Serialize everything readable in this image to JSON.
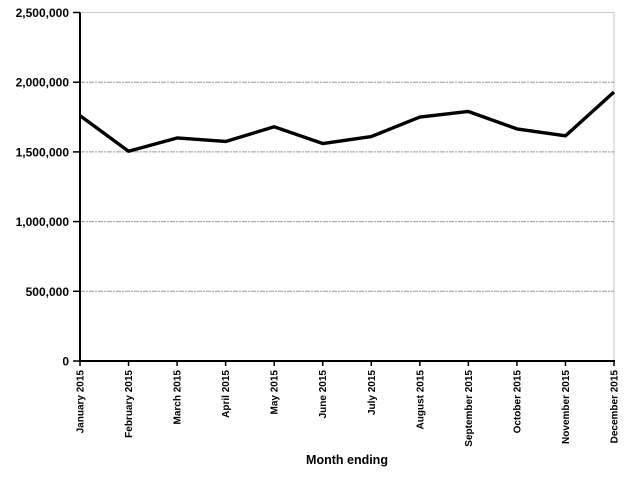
{
  "chart_data": {
    "type": "line",
    "title": "",
    "xlabel": "Month ending",
    "ylabel": "",
    "categories": [
      "January 2015",
      "February 2015",
      "March 2015",
      "April 2015",
      "May 2015",
      "June 2015",
      "July 2015",
      "August 2015",
      "September 2015",
      "October 2015",
      "November 2015",
      "December 2015"
    ],
    "values": [
      1760000,
      1505000,
      1600000,
      1575000,
      1680000,
      1560000,
      1610000,
      1750000,
      1790000,
      1665000,
      1615000,
      1930000
    ],
    "ylim": [
      0,
      2500000
    ],
    "ytick_step": 500000,
    "y_tick_labels": [
      "0",
      "500,000",
      "1,000,000",
      "1,500,000",
      "2,000,000",
      "2,500,000"
    ],
    "grid": true,
    "legend": "none",
    "line_color": "#000000",
    "axis_color": "#000000",
    "gridline_color": "#999999",
    "border_color": "#c9c9c9",
    "background": "#ffffff"
  }
}
